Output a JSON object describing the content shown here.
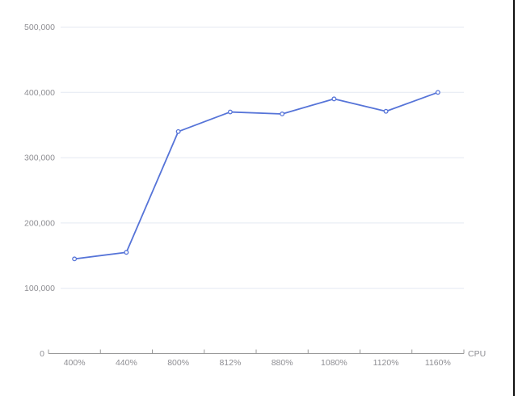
{
  "chart_data": {
    "type": "line",
    "categories": [
      "400%",
      "440%",
      "800%",
      "812%",
      "880%",
      "1080%",
      "1120%",
      "1160%"
    ],
    "series": [
      {
        "name": "CPU",
        "values": [
          145000,
          155000,
          340000,
          370000,
          367000,
          390000,
          371000,
          400000
        ]
      }
    ],
    "title": "",
    "xlabel": "CPU",
    "ylabel": "",
    "ylim": [
      0,
      500000
    ],
    "y_ticks": [
      0,
      100000,
      200000,
      300000,
      400000,
      500000
    ],
    "y_tick_labels": [
      "0",
      "100,000",
      "200,000",
      "300,000",
      "400,000",
      "500,000"
    ],
    "grid": true,
    "legend_position": "none",
    "marker": "open-circle",
    "colors": {
      "line": "#5674d8",
      "marker_fill": "#ffffff",
      "grid": "#e4e9f2",
      "axis": "#999999",
      "tick_label": "#8e8e93",
      "background": "#ffffff",
      "edge_line": "#111111"
    }
  }
}
